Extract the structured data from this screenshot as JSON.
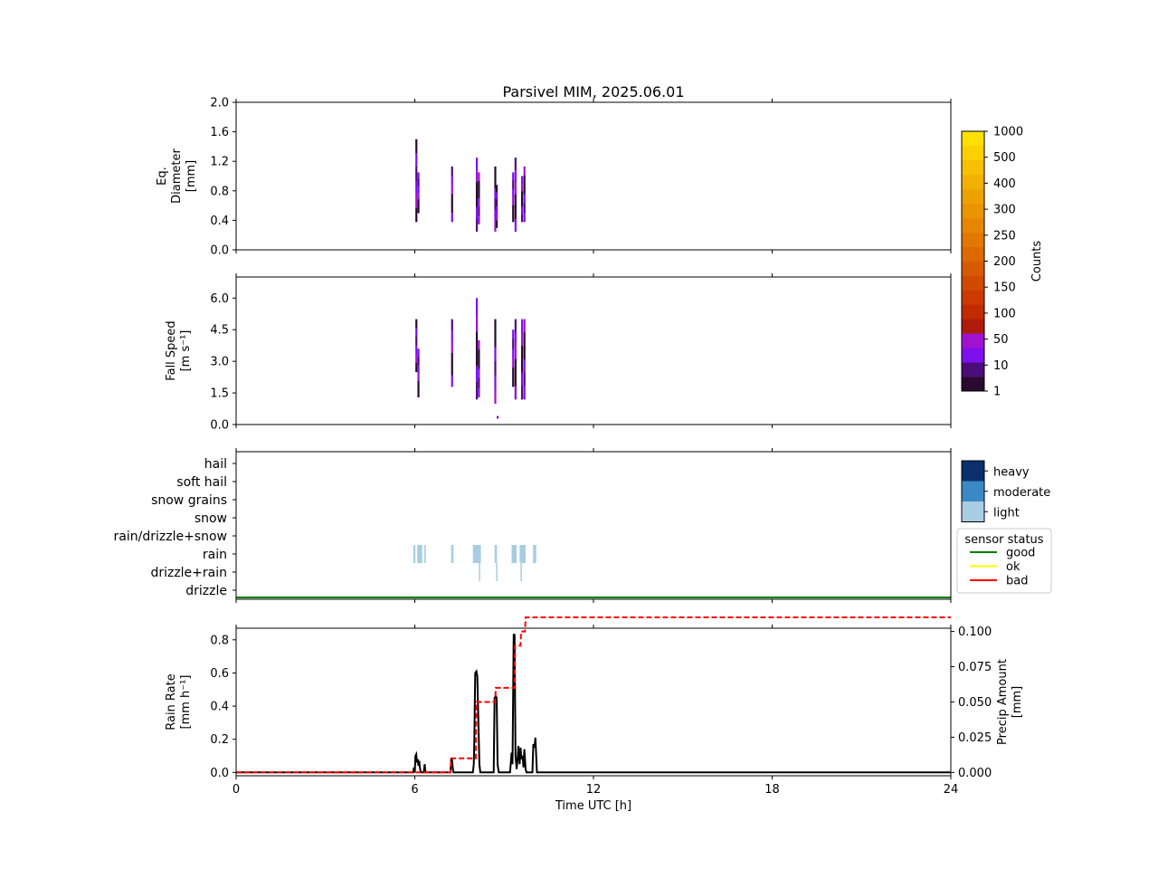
{
  "title": "Parsivel MIM, 2025.06.01",
  "colors": {
    "counts_scale": [
      "#2a0a30",
      "#4b0d7a",
      "#7e0ff0",
      "#a012d0",
      "#b01a0a",
      "#c22a00",
      "#cc3a00",
      "#d24a00",
      "#d85a00",
      "#dd6a00",
      "#e27800",
      "#e68600",
      "#ea9400",
      "#eea200",
      "#f2b000",
      "#f6c000",
      "#fad000",
      "#fde000"
    ],
    "precip_intensity": {
      "light": "#a8cde3",
      "moderate": "#3a88c4",
      "heavy": "#0b2f6b"
    },
    "sensor_status": {
      "good": "#008000",
      "ok": "#ffff00",
      "bad": "#ff0000"
    },
    "rain_rate_line": "#000000",
    "precip_amount_line": "#ff0000"
  },
  "colorbar_counts": {
    "label": "Counts",
    "tick_labels": [
      "1",
      "10",
      "50",
      "100",
      "150",
      "200",
      "250",
      "300",
      "400",
      "500",
      "1000"
    ]
  },
  "legend_intensity": {
    "items": [
      "heavy",
      "moderate",
      "light"
    ]
  },
  "legend_status": {
    "title": "sensor status",
    "items": [
      "good",
      "ok",
      "bad"
    ]
  },
  "chart_data": [
    {
      "type": "heatmap",
      "id": "diameter",
      "ylabel": [
        "Eq.",
        "Diameter",
        "[mm]"
      ],
      "xlim": [
        0,
        24
      ],
      "ylim": [
        0,
        2.0
      ],
      "yticks": [
        0.0,
        0.4,
        0.8,
        1.2,
        1.6,
        2.0
      ],
      "ytick_labels": [
        "0.0",
        "0.4",
        "0.8",
        "1.2",
        "1.6",
        "2.0"
      ],
      "xticks": [
        0,
        6,
        12,
        18,
        24
      ],
      "events": [
        {
          "t": 6.05,
          "ymin": 0.38,
          "ymax": 1.5
        },
        {
          "t": 6.12,
          "ymin": 0.5,
          "ymax": 1.05
        },
        {
          "t": 7.25,
          "ymin": 0.38,
          "ymax": 1.13
        },
        {
          "t": 8.08,
          "ymin": 0.25,
          "ymax": 1.25
        },
        {
          "t": 8.15,
          "ymin": 0.35,
          "ymax": 1.05
        },
        {
          "t": 8.7,
          "ymin": 0.25,
          "ymax": 1.13
        },
        {
          "t": 8.75,
          "ymin": 0.3,
          "ymax": 0.88
        },
        {
          "t": 9.3,
          "ymin": 0.38,
          "ymax": 1.05
        },
        {
          "t": 9.38,
          "ymin": 0.25,
          "ymax": 1.25
        },
        {
          "t": 9.6,
          "ymin": 0.38,
          "ymax": 1.0
        },
        {
          "t": 9.68,
          "ymin": 0.38,
          "ymax": 1.13
        }
      ]
    },
    {
      "type": "heatmap",
      "id": "fallspeed",
      "ylabel": [
        "Fall Speed",
        "[m s⁻¹]"
      ],
      "xlim": [
        0,
        24
      ],
      "ylim": [
        0,
        7.0
      ],
      "yticks": [
        0.0,
        1.5,
        3.0,
        4.5,
        6.0
      ],
      "ytick_labels": [
        "0.0",
        "1.5",
        "3.0",
        "4.5",
        "6.0"
      ],
      "xticks": [
        0,
        6,
        12,
        18,
        24
      ],
      "events": [
        {
          "t": 6.05,
          "ymin": 2.5,
          "ymax": 5.0
        },
        {
          "t": 6.12,
          "ymin": 1.3,
          "ymax": 3.6
        },
        {
          "t": 7.25,
          "ymin": 1.8,
          "ymax": 5.0
        },
        {
          "t": 8.08,
          "ymin": 1.2,
          "ymax": 6.0
        },
        {
          "t": 8.15,
          "ymin": 1.3,
          "ymax": 4.0
        },
        {
          "t": 8.7,
          "ymin": 1.0,
          "ymax": 5.0
        },
        {
          "t": 8.78,
          "ymin": 0.3,
          "ymax": 0.4
        },
        {
          "t": 9.3,
          "ymin": 1.8,
          "ymax": 4.5
        },
        {
          "t": 9.38,
          "ymin": 1.2,
          "ymax": 5.0
        },
        {
          "t": 9.6,
          "ymin": 1.2,
          "ymax": 5.0
        },
        {
          "t": 9.68,
          "ymin": 1.2,
          "ymax": 5.0
        }
      ]
    },
    {
      "type": "heatmap",
      "id": "precip_type",
      "categories": [
        "drizzle",
        "drizzle+rain",
        "rain",
        "rain/drizzle+snow",
        "snow",
        "snow grains",
        "soft hail",
        "hail"
      ],
      "xlim": [
        0,
        24
      ],
      "xticks": [
        0,
        6,
        12,
        18,
        24
      ],
      "events": [
        {
          "category": "rain",
          "t0": 5.95,
          "t1": 6.02,
          "intensity": "light"
        },
        {
          "category": "rain",
          "t0": 6.08,
          "t1": 6.25,
          "intensity": "light"
        },
        {
          "category": "rain",
          "t0": 6.32,
          "t1": 6.37,
          "intensity": "light"
        },
        {
          "category": "rain",
          "t0": 7.22,
          "t1": 7.3,
          "intensity": "light"
        },
        {
          "category": "rain",
          "t0": 7.95,
          "t1": 8.22,
          "intensity": "light"
        },
        {
          "category": "rain",
          "t0": 8.68,
          "t1": 8.76,
          "intensity": "light"
        },
        {
          "category": "rain",
          "t0": 9.25,
          "t1": 9.42,
          "intensity": "light"
        },
        {
          "category": "rain",
          "t0": 9.52,
          "t1": 9.72,
          "intensity": "light"
        },
        {
          "category": "rain",
          "t0": 9.97,
          "t1": 10.08,
          "intensity": "light"
        },
        {
          "category": "drizzle+rain",
          "t0": 8.15,
          "t1": 8.19,
          "intensity": "light"
        },
        {
          "category": "drizzle+rain",
          "t0": 8.73,
          "t1": 8.76,
          "intensity": "light"
        },
        {
          "category": "drizzle+rain",
          "t0": 9.55,
          "t1": 9.59,
          "intensity": "light"
        }
      ],
      "sensor_status": [
        {
          "t0": 0,
          "t1": 24,
          "status": "good"
        }
      ]
    },
    {
      "type": "line",
      "id": "rain",
      "xlabel": "Time UTC [h]",
      "ylabel": [
        "Rain Rate",
        "[mm h⁻¹]"
      ],
      "ylabel_right": [
        "Precip Amount",
        "[mm]"
      ],
      "xlim": [
        0,
        24
      ],
      "ylim": [
        -0.02,
        0.87
      ],
      "ylim_right": [
        -0.00235,
        0.1023
      ],
      "xticks": [
        0,
        6,
        12,
        18,
        24
      ],
      "xtick_labels": [
        "0",
        "6",
        "12",
        "18",
        "24"
      ],
      "yticks": [
        0.0,
        0.2,
        0.4,
        0.6,
        0.8
      ],
      "ytick_labels": [
        "0.0",
        "0.2",
        "0.4",
        "0.6",
        "0.8"
      ],
      "yticks_right": [
        0.0,
        0.025,
        0.05,
        0.075,
        0.1
      ],
      "ytick_labels_right": [
        "0.000",
        "0.025",
        "0.050",
        "0.075",
        "0.100"
      ],
      "series": [
        {
          "name": "Rain Rate",
          "axis": "left",
          "x": [
            0,
            5.95,
            5.97,
            6.0,
            6.02,
            6.05,
            6.07,
            6.1,
            6.12,
            6.15,
            6.17,
            6.2,
            6.25,
            6.3,
            6.33,
            6.36,
            7.2,
            7.22,
            7.25,
            7.28,
            7.3,
            7.95,
            7.98,
            8.0,
            8.03,
            8.07,
            8.1,
            8.13,
            8.17,
            8.2,
            8.25,
            8.65,
            8.68,
            8.72,
            8.75,
            8.78,
            8.82,
            9.2,
            9.25,
            9.28,
            9.32,
            9.35,
            9.38,
            9.42,
            9.45,
            9.48,
            9.52,
            9.55,
            9.58,
            9.62,
            9.65,
            9.68,
            9.72,
            9.75,
            9.95,
            9.98,
            10.02,
            10.05,
            10.1,
            24
          ],
          "y": [
            0,
            0,
            0.03,
            0,
            0.1,
            0.11,
            0.06,
            0.08,
            0.04,
            0.07,
            0.03,
            0,
            0,
            0,
            0.05,
            0,
            0,
            0.08,
            0.08,
            0.02,
            0,
            0,
            0.05,
            0.2,
            0.6,
            0.61,
            0.58,
            0.35,
            0.05,
            0,
            0,
            0,
            0.45,
            0.46,
            0.45,
            0.05,
            0,
            0,
            0.12,
            0.05,
            0.83,
            0.83,
            0.1,
            0.02,
            0.08,
            0.16,
            0.05,
            0.15,
            0.08,
            0.1,
            0.03,
            0.14,
            0.02,
            0,
            0,
            0.17,
            0.15,
            0.21,
            0,
            0
          ]
        },
        {
          "name": "Precip Amount",
          "axis": "right",
          "x": [
            0,
            7.2,
            7.22,
            8.05,
            8.07,
            8.7,
            8.72,
            9.35,
            9.37,
            9.55,
            9.57,
            9.7,
            9.72,
            24
          ],
          "y": [
            0,
            0,
            0.01,
            0.01,
            0.05,
            0.05,
            0.06,
            0.06,
            0.09,
            0.09,
            0.1,
            0.1,
            0.11,
            0.11
          ]
        }
      ]
    }
  ]
}
